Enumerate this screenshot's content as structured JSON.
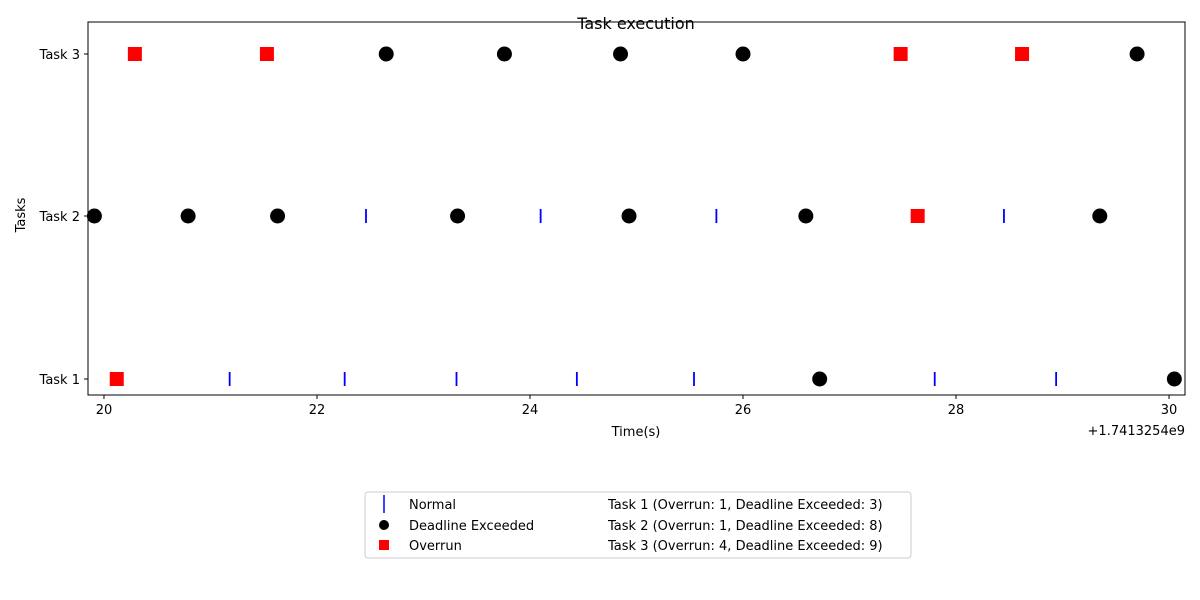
{
  "chart_data": {
    "type": "scatter",
    "title": "Task execution",
    "xlabel": "Time(s)",
    "ylabel": "Tasks",
    "x_offset_label": "+1.7413254e9",
    "xlim": [
      19.85,
      30.15
    ],
    "x_ticks": [
      20,
      22,
      24,
      26,
      28,
      30
    ],
    "categories": [
      "Task 1",
      "Task 2",
      "Task 3"
    ],
    "grid": false,
    "legend_position": "bottom-center",
    "series": [
      {
        "name": "Normal",
        "marker": "vline",
        "color": "#0000ff",
        "points": [
          {
            "x": 21.18,
            "y": "Task 1"
          },
          {
            "x": 22.26,
            "y": "Task 1"
          },
          {
            "x": 23.31,
            "y": "Task 1"
          },
          {
            "x": 24.44,
            "y": "Task 1"
          },
          {
            "x": 25.54,
            "y": "Task 1"
          },
          {
            "x": 27.8,
            "y": "Task 1"
          },
          {
            "x": 28.94,
            "y": "Task 1"
          },
          {
            "x": 22.46,
            "y": "Task 2"
          },
          {
            "x": 24.1,
            "y": "Task 2"
          },
          {
            "x": 25.75,
            "y": "Task 2"
          },
          {
            "x": 28.45,
            "y": "Task 2"
          }
        ]
      },
      {
        "name": "Deadline Exceeded",
        "marker": "circle",
        "color": "#000000",
        "points": [
          {
            "x": 26.72,
            "y": "Task 1"
          },
          {
            "x": 30.05,
            "y": "Task 1"
          },
          {
            "x": 19.91,
            "y": "Task 2"
          },
          {
            "x": 20.79,
            "y": "Task 2"
          },
          {
            "x": 21.63,
            "y": "Task 2"
          },
          {
            "x": 23.32,
            "y": "Task 2"
          },
          {
            "x": 24.93,
            "y": "Task 2"
          },
          {
            "x": 26.59,
            "y": "Task 2"
          },
          {
            "x": 29.35,
            "y": "Task 2"
          },
          {
            "x": 22.65,
            "y": "Task 3"
          },
          {
            "x": 23.76,
            "y": "Task 3"
          },
          {
            "x": 24.85,
            "y": "Task 3"
          },
          {
            "x": 26.0,
            "y": "Task 3"
          },
          {
            "x": 29.7,
            "y": "Task 3"
          }
        ]
      },
      {
        "name": "Overrun",
        "marker": "square",
        "color": "#ff0000",
        "points": [
          {
            "x": 20.12,
            "y": "Task 1"
          },
          {
            "x": 27.64,
            "y": "Task 2"
          },
          {
            "x": 20.29,
            "y": "Task 3"
          },
          {
            "x": 21.53,
            "y": "Task 3"
          },
          {
            "x": 27.48,
            "y": "Task 3"
          },
          {
            "x": 28.62,
            "y": "Task 3"
          }
        ]
      }
    ],
    "legend_entries": [
      "Task 1 (Overrun: 1, Deadline Exceeded: 3)",
      "Task 2 (Overrun: 1, Deadline Exceeded: 8)",
      "Task 3 (Overrun: 4, Deadline Exceeded: 9)"
    ]
  }
}
